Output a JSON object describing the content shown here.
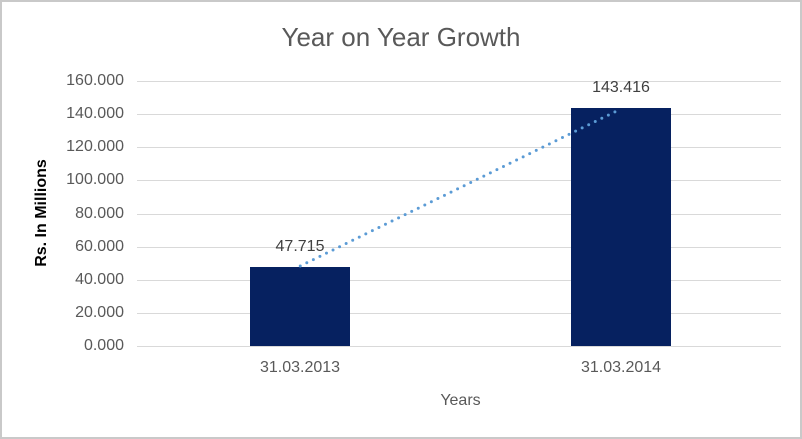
{
  "chart": {
    "title": "Year on Year Growth",
    "x_axis_title": "Years",
    "y_axis_title": "Rs. In Millions"
  },
  "chart_data": {
    "type": "bar",
    "title": "Year on Year Growth",
    "categories": [
      "31.03.2013",
      "31.03.2014"
    ],
    "series": [
      {
        "name": "Year on Year Growth",
        "values": [
          47.715,
          143.416
        ]
      }
    ],
    "data_labels": [
      "47.715",
      "143.416"
    ],
    "xlabel": "Years",
    "ylabel": "Rs. In Millions",
    "ylim": [
      0,
      160
    ],
    "y_tick_step": 20,
    "y_tick_labels": [
      "0.000",
      "20.000",
      "40.000",
      "60.000",
      "80.000",
      "100.000",
      "120.000",
      "140.000",
      "160.000"
    ],
    "grid": true,
    "legend": false,
    "trendline": {
      "style": "dotted",
      "from_point": 0,
      "to_point": 1
    }
  },
  "colors": {
    "bar": "#062160",
    "trendline": "#5b9bd5",
    "title": "#595959",
    "tick_label": "#595959",
    "data_label": "#404040",
    "gridline": "#d9d9d9",
    "axis_title": "#000000",
    "border": "#c9c9c9",
    "background": "#ffffff"
  }
}
